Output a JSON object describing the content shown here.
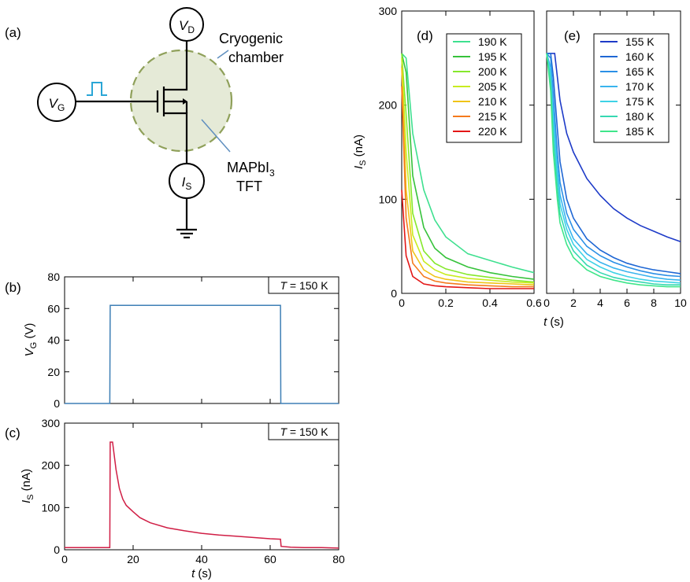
{
  "colors": {
    "vg_trace": "#3e7fb5",
    "is_trace": "#d01e45",
    "pulse_icon": "#2aa6d6",
    "chamber_fill": "#e5ead7",
    "chamber_edge": "#8fa05a"
  },
  "circuit": {
    "panel": "(a)",
    "vd": {
      "main": "V",
      "sub": "D"
    },
    "vg": {
      "main": "V",
      "sub": "G"
    },
    "is": {
      "main": "I",
      "sub": "S"
    },
    "chamber_l1": "Cryogenic",
    "chamber_l2": "chamber",
    "tft_l1": {
      "main": "MAPbI",
      "sub": "3"
    },
    "tft_l2": "TFT",
    "icons": [
      "transistor-icon",
      "pulse-icon",
      "ground-icon"
    ]
  },
  "chart_data": [
    {
      "id": "b",
      "type": "line",
      "panel": "(b)",
      "annotation": {
        "main": "T",
        "rest": " = 150 K"
      },
      "ylabel": {
        "main": "V",
        "sub": "G",
        "rest": " (V)"
      },
      "xlabel": "",
      "xlim": [
        0,
        80
      ],
      "ylim": [
        0,
        80
      ],
      "xticks": [
        "0",
        "20",
        "40",
        "60",
        "80"
      ],
      "xtick_vals": [
        0,
        20,
        40,
        60,
        80
      ],
      "xticks_labeled": false,
      "yticks": [
        "0",
        "20",
        "40",
        "60",
        "80"
      ],
      "ytick_vals": [
        0,
        20,
        40,
        60,
        80
      ],
      "series": [
        {
          "color": "#3e7fb5",
          "x": [
            0,
            13.2,
            13.3,
            63,
            63.1,
            80
          ],
          "y": [
            0,
            0,
            62,
            62,
            0,
            0
          ]
        }
      ]
    },
    {
      "id": "c",
      "type": "line",
      "panel": "(c)",
      "annotation": {
        "main": "T",
        "rest": " = 150 K"
      },
      "ylabel": {
        "main": "I",
        "sub": "S",
        "rest": " (nA)"
      },
      "xlabel": {
        "main": "t",
        "rest": " (s)"
      },
      "xlim": [
        0,
        80
      ],
      "ylim": [
        0,
        300
      ],
      "xticks": [
        "0",
        "20",
        "40",
        "60",
        "80"
      ],
      "xtick_vals": [
        0,
        20,
        40,
        60,
        80
      ],
      "xticks_labeled": true,
      "yticks": [
        "0",
        "100",
        "200",
        "300"
      ],
      "ytick_vals": [
        0,
        100,
        200,
        300
      ],
      "series": [
        {
          "color": "#d01e45",
          "x": [
            0,
            13.2,
            13.3,
            14,
            15,
            16,
            17,
            18,
            20,
            22,
            25,
            30,
            35,
            40,
            45,
            50,
            55,
            60,
            63,
            63.2,
            66,
            70,
            75,
            80
          ],
          "y": [
            5,
            5,
            255,
            255,
            190,
            145,
            120,
            105,
            90,
            76,
            64,
            52,
            45,
            39,
            35,
            32,
            29,
            26,
            25,
            8,
            6,
            5,
            5,
            4
          ]
        }
      ]
    },
    {
      "id": "d",
      "type": "line",
      "panel": "(d)",
      "ylabel": {
        "main": "I",
        "sub": "S",
        "rest": " (nA)"
      },
      "xlabel": "",
      "xlim": [
        0,
        0.6
      ],
      "ylim": [
        0,
        300
      ],
      "xticks": [
        "0",
        "0.2",
        "0.4",
        "0.6"
      ],
      "xtick_vals": [
        0,
        0.2,
        0.4,
        0.6
      ],
      "xticks_labeled": true,
      "yticks": [
        "0",
        "100",
        "200",
        "300"
      ],
      "ytick_vals": [
        0,
        100,
        200,
        300
      ],
      "series": [
        {
          "name": "190 K",
          "color": "#3ee08f",
          "x": [
            0,
            0.02,
            0.05,
            0.1,
            0.15,
            0.2,
            0.3,
            0.4,
            0.5,
            0.6
          ],
          "y": [
            255,
            250,
            170,
            110,
            78,
            60,
            42,
            35,
            28,
            22
          ]
        },
        {
          "name": "195 K",
          "color": "#36c23b",
          "x": [
            0,
            0.02,
            0.05,
            0.1,
            0.15,
            0.2,
            0.3,
            0.4,
            0.5,
            0.6
          ],
          "y": [
            255,
            235,
            125,
            70,
            48,
            38,
            28,
            22,
            18,
            15
          ]
        },
        {
          "name": "200 K",
          "color": "#86e82c",
          "x": [
            0,
            0.02,
            0.05,
            0.1,
            0.15,
            0.2,
            0.3,
            0.4,
            0.5,
            0.6
          ],
          "y": [
            255,
            190,
            85,
            45,
            32,
            26,
            20,
            17,
            14,
            12
          ]
        },
        {
          "name": "205 K",
          "color": "#c8ec20",
          "x": [
            0,
            0.02,
            0.05,
            0.1,
            0.15,
            0.2,
            0.3,
            0.4,
            0.5,
            0.6
          ],
          "y": [
            250,
            150,
            62,
            34,
            25,
            20,
            16,
            14,
            12,
            11
          ]
        },
        {
          "name": "210 K",
          "color": "#f0c418",
          "x": [
            0,
            0.02,
            0.05,
            0.1,
            0.15,
            0.2,
            0.3,
            0.4,
            0.5,
            0.6
          ],
          "y": [
            240,
            110,
            45,
            25,
            18,
            15,
            12,
            11,
            10,
            9
          ]
        },
        {
          "name": "215 K",
          "color": "#f57a1c",
          "x": [
            0,
            0.02,
            0.05,
            0.1,
            0.15,
            0.2,
            0.3,
            0.4,
            0.5,
            0.6
          ],
          "y": [
            220,
            80,
            32,
            18,
            13,
            11,
            9,
            8,
            7,
            7
          ]
        },
        {
          "name": "220 K",
          "color": "#e31616",
          "x": [
            0,
            0.02,
            0.05,
            0.1,
            0.15,
            0.2,
            0.3,
            0.4,
            0.5,
            0.6
          ],
          "y": [
            110,
            40,
            18,
            10,
            8,
            7,
            6,
            5,
            5,
            5
          ]
        }
      ]
    },
    {
      "id": "e",
      "type": "line",
      "panel": "(e)",
      "ylabel": "",
      "xlabel": "",
      "xlim": [
        0,
        10
      ],
      "ylim": [
        0,
        300
      ],
      "xticks": [
        "0",
        "2",
        "4",
        "6",
        "8",
        "10"
      ],
      "xtick_vals": [
        0,
        2,
        4,
        6,
        8,
        10
      ],
      "xticks_labeled": true,
      "yticks": [],
      "ytick_vals": [
        0,
        100,
        200,
        300
      ],
      "series": [
        {
          "name": "155 K",
          "color": "#1e3bc8",
          "x": [
            0,
            0.3,
            0.6,
            0.8,
            1,
            1.5,
            2,
            3,
            4,
            5,
            6,
            7,
            8,
            9,
            10
          ],
          "y": [
            255,
            255,
            255,
            230,
            205,
            170,
            150,
            122,
            104,
            90,
            80,
            72,
            66,
            60,
            55
          ]
        },
        {
          "name": "160 K",
          "color": "#1f67d4",
          "x": [
            0,
            0.3,
            0.5,
            0.8,
            1,
            1.5,
            2,
            3,
            4,
            5,
            6,
            7,
            8,
            9,
            10
          ],
          "y": [
            255,
            255,
            230,
            175,
            140,
            100,
            80,
            58,
            46,
            38,
            32,
            28,
            25,
            23,
            21
          ]
        },
        {
          "name": "165 K",
          "color": "#2b8fe6",
          "x": [
            0,
            0.3,
            0.5,
            0.8,
            1,
            1.5,
            2,
            3,
            4,
            5,
            6,
            7,
            8,
            9,
            10
          ],
          "y": [
            255,
            250,
            210,
            150,
            118,
            85,
            68,
            50,
            40,
            33,
            28,
            24,
            21,
            19,
            18
          ]
        },
        {
          "name": "170 K",
          "color": "#39b4ee",
          "x": [
            0,
            0.3,
            0.5,
            0.8,
            1,
            1.5,
            2,
            3,
            4,
            5,
            6,
            7,
            8,
            9,
            10
          ],
          "y": [
            255,
            240,
            195,
            135,
            105,
            75,
            58,
            42,
            33,
            27,
            23,
            20,
            17,
            15,
            14
          ]
        },
        {
          "name": "175 K",
          "color": "#3ed2e6",
          "x": [
            0,
            0.3,
            0.5,
            0.8,
            1,
            1.5,
            2,
            3,
            4,
            5,
            6,
            7,
            8,
            9,
            10
          ],
          "y": [
            255,
            232,
            180,
            125,
            95,
            68,
            52,
            36,
            28,
            22,
            18,
            15,
            13,
            12,
            11
          ]
        },
        {
          "name": "180 K",
          "color": "#36d8b2",
          "x": [
            0,
            0.3,
            0.5,
            0.8,
            1,
            1.5,
            2,
            3,
            4,
            5,
            6,
            7,
            8,
            9,
            10
          ],
          "y": [
            255,
            225,
            165,
            112,
            85,
            60,
            45,
            30,
            22,
            17,
            14,
            12,
            10,
            9,
            9
          ]
        },
        {
          "name": "185 K",
          "color": "#3fe68a",
          "x": [
            0,
            0.3,
            0.5,
            0.8,
            1,
            1.5,
            2,
            3,
            4,
            5,
            6,
            7,
            8,
            9,
            10
          ],
          "y": [
            255,
            215,
            150,
            100,
            75,
            52,
            38,
            25,
            18,
            14,
            11,
            9,
            8,
            7,
            7
          ]
        }
      ]
    }
  ]
}
